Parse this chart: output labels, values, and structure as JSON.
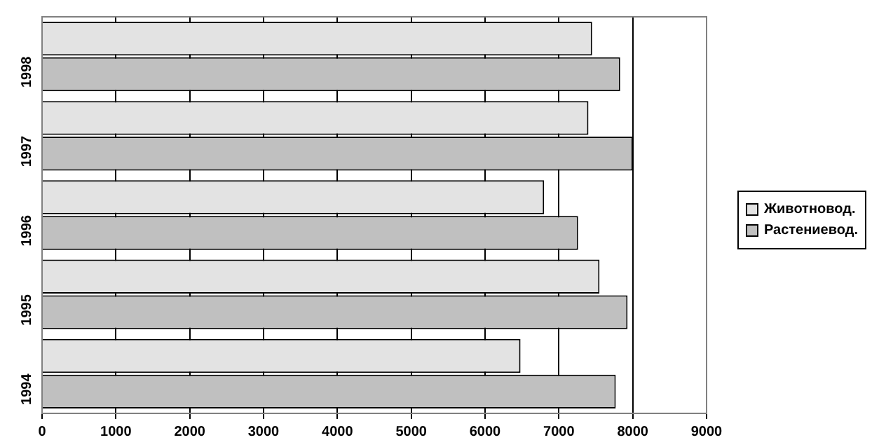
{
  "chart_data": {
    "type": "bar",
    "orientation": "horizontal",
    "categories": [
      "1998",
      "1997",
      "1996",
      "1995",
      "1994"
    ],
    "series": [
      {
        "name": "Животновод.",
        "color": "#e3e3e3",
        "values": [
          7450,
          7400,
          6800,
          7550,
          6480
        ]
      },
      {
        "name": "Растениевод.",
        "color": "#c0c0c0",
        "values": [
          7830,
          8000,
          7260,
          7930,
          7770
        ]
      }
    ],
    "xlim": [
      0,
      9000
    ],
    "xticks": [
      0,
      1000,
      2000,
      3000,
      4000,
      5000,
      6000,
      7000,
      8000,
      9000
    ],
    "grid": "x",
    "legend": "right"
  }
}
